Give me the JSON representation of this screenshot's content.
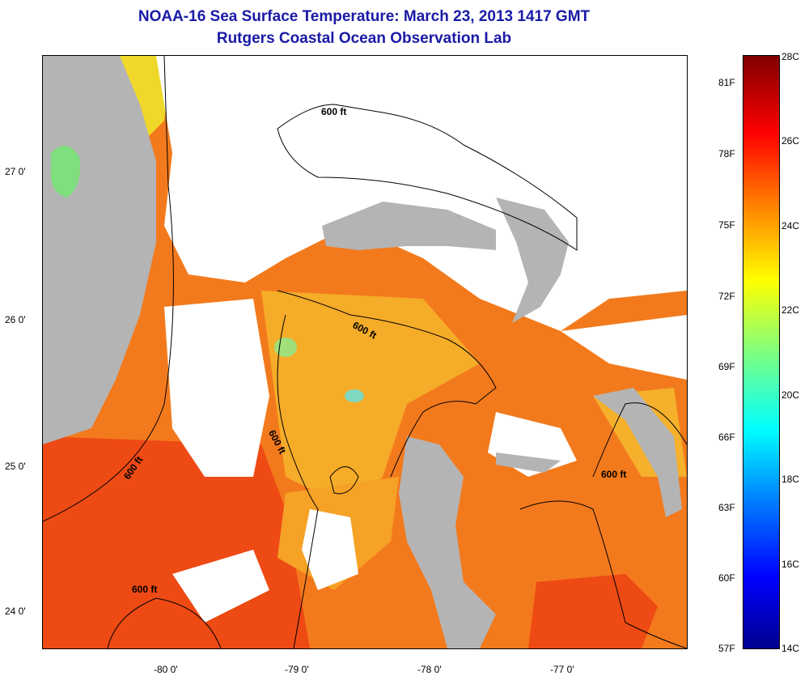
{
  "title": {
    "line1": "NOAA-16 Sea Surface Temperature:  March 23, 2013 1417 GMT",
    "line2": "Rutgers Coastal Ocean Observation Lab"
  },
  "map": {
    "lat_labels": [
      "27 0'",
      "26 0'",
      "25 0'",
      "24 0'"
    ],
    "lon_labels": [
      "-80 0'",
      "-79 0'",
      "-78 0'",
      "-77 0'"
    ],
    "contour_labels": [
      "600 ft",
      "600 ft",
      "600 ft",
      "600 ft",
      "600 ft",
      "600 ft"
    ],
    "colors": {
      "land": "#b4b4b4",
      "cloud": "#ffffff",
      "warm_water": "#f05a14",
      "mid_water": "#f5a020",
      "cool_water": "#f5d22a",
      "cold_patch": "#7fdf7f",
      "contour": "#000000"
    }
  },
  "colorbar": {
    "fahrenheit_labels": [
      "81F",
      "78F",
      "75F",
      "72F",
      "69F",
      "66F",
      "63F",
      "60F",
      "57F"
    ],
    "celsius_labels": [
      "28C",
      "26C",
      "24C",
      "22C",
      "20C",
      "18C",
      "16C",
      "14C"
    ],
    "range_c": [
      14,
      28
    ]
  }
}
